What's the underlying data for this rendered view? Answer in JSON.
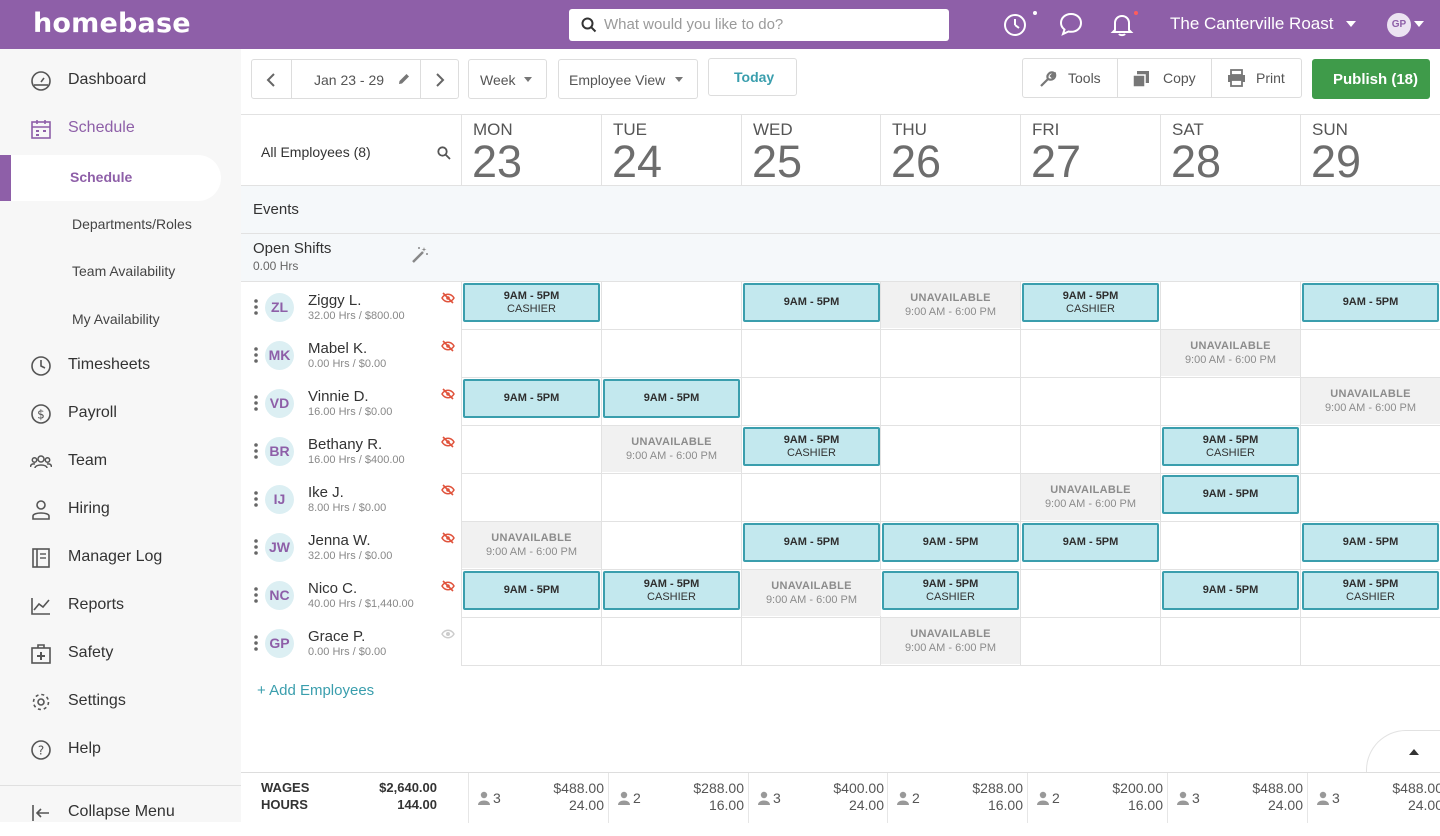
{
  "brand": {
    "name": "homebase",
    "color": "#8e5fa8"
  },
  "topbar": {
    "search_placeholder": "What would you like to do?",
    "company": "The Canterville Roast",
    "user_initials": "GP"
  },
  "sidebar": {
    "items": [
      {
        "label": "Dashboard",
        "icon": "dashboard-icon"
      },
      {
        "label": "Schedule",
        "icon": "calendar-icon"
      },
      {
        "label": "Timesheets",
        "icon": "clock-icon"
      },
      {
        "label": "Payroll",
        "icon": "dollar-icon"
      },
      {
        "label": "Team",
        "icon": "team-icon"
      },
      {
        "label": "Hiring",
        "icon": "person-icon"
      },
      {
        "label": "Manager Log",
        "icon": "log-icon"
      },
      {
        "label": "Reports",
        "icon": "chart-icon"
      },
      {
        "label": "Safety",
        "icon": "first-aid-icon"
      },
      {
        "label": "Settings",
        "icon": "gear-icon"
      },
      {
        "label": "Help",
        "icon": "help-icon"
      }
    ],
    "schedule_sub": [
      "Schedule",
      "Departments/Roles",
      "Team Availability",
      "My Availability"
    ],
    "collapse": "Collapse Menu"
  },
  "toolbar": {
    "date_range": "Jan 23 - 29",
    "range_select": "Week",
    "view_select": "Employee View",
    "today": "Today",
    "tools": "Tools",
    "copy": "Copy",
    "print": "Print",
    "publish": "Publish (18)",
    "publish_color": "#3f9b4a"
  },
  "grid": {
    "all_employees": "All Employees (8)",
    "events": "Events",
    "open_shifts": "Open Shifts",
    "open_shifts_hours": "0.00 Hrs",
    "add_employees": "+ Add Employees",
    "days": [
      {
        "dow": "MON",
        "num": "23"
      },
      {
        "dow": "TUE",
        "num": "24"
      },
      {
        "dow": "WED",
        "num": "25"
      },
      {
        "dow": "THU",
        "num": "26"
      },
      {
        "dow": "FRI",
        "num": "27"
      },
      {
        "dow": "SAT",
        "num": "28"
      },
      {
        "dow": "SUN",
        "num": "29"
      }
    ],
    "employees": [
      {
        "initials": "ZL",
        "name": "Ziggy L.",
        "sub": "32.00 Hrs / $800.00",
        "cells": [
          {
            "k": "s",
            "t": "9AM - 5PM",
            "r": "CASHIER"
          },
          null,
          {
            "k": "s",
            "t": "9AM - 5PM"
          },
          {
            "k": "u"
          },
          {
            "k": "s",
            "t": "9AM - 5PM",
            "r": "CASHIER"
          },
          null,
          {
            "k": "s",
            "t": "9AM - 5PM"
          }
        ]
      },
      {
        "initials": "MK",
        "name": "Mabel K.",
        "sub": "0.00 Hrs / $0.00",
        "cells": [
          null,
          null,
          null,
          null,
          null,
          {
            "k": "u"
          },
          null
        ]
      },
      {
        "initials": "VD",
        "name": "Vinnie D.",
        "sub": "16.00 Hrs / $0.00",
        "cells": [
          {
            "k": "s",
            "t": "9AM - 5PM"
          },
          {
            "k": "s",
            "t": "9AM - 5PM"
          },
          null,
          null,
          null,
          null,
          {
            "k": "u"
          }
        ]
      },
      {
        "initials": "BR",
        "name": "Bethany R.",
        "sub": "16.00 Hrs / $400.00",
        "cells": [
          null,
          {
            "k": "u"
          },
          {
            "k": "s",
            "t": "9AM - 5PM",
            "r": "CASHIER"
          },
          null,
          null,
          {
            "k": "s",
            "t": "9AM - 5PM",
            "r": "CASHIER"
          },
          null
        ]
      },
      {
        "initials": "IJ",
        "name": "Ike J.",
        "sub": "8.00 Hrs / $0.00",
        "cells": [
          null,
          null,
          null,
          null,
          {
            "k": "u"
          },
          {
            "k": "s",
            "t": "9AM - 5PM"
          },
          null
        ]
      },
      {
        "initials": "JW",
        "name": "Jenna W.",
        "sub": "32.00 Hrs / $0.00",
        "cells": [
          {
            "k": "u"
          },
          null,
          {
            "k": "s",
            "t": "9AM - 5PM"
          },
          {
            "k": "s",
            "t": "9AM - 5PM"
          },
          {
            "k": "s",
            "t": "9AM - 5PM"
          },
          null,
          {
            "k": "s",
            "t": "9AM - 5PM"
          }
        ]
      },
      {
        "initials": "NC",
        "name": "Nico C.",
        "sub": "40.00 Hrs / $1,440.00",
        "cells": [
          {
            "k": "s",
            "t": "9AM - 5PM"
          },
          {
            "k": "s",
            "t": "9AM - 5PM",
            "r": "CASHIER"
          },
          {
            "k": "u"
          },
          {
            "k": "s",
            "t": "9AM - 5PM",
            "r": "CASHIER"
          },
          null,
          {
            "k": "s",
            "t": "9AM - 5PM"
          },
          {
            "k": "s",
            "t": "9AM - 5PM",
            "r": "CASHIER"
          }
        ]
      },
      {
        "initials": "GP",
        "name": "Grace P.",
        "sub": "0.00 Hrs / $0.00",
        "visible": true,
        "cells": [
          null,
          null,
          null,
          {
            "k": "u"
          },
          null,
          null,
          null
        ]
      }
    ],
    "unavailable_label": "UNAVAILABLE",
    "unavailable_time": "9:00 AM - 6:00 PM"
  },
  "footer": {
    "wages_label": "WAGES",
    "hours_label": "HOURS",
    "total_wages": "$2,640.00",
    "total_hours": "144.00",
    "days": [
      {
        "count": "3",
        "wages": "$488.00",
        "hours": "24.00"
      },
      {
        "count": "2",
        "wages": "$288.00",
        "hours": "16.00"
      },
      {
        "count": "3",
        "wages": "$400.00",
        "hours": "24.00"
      },
      {
        "count": "2",
        "wages": "$288.00",
        "hours": "16.00"
      },
      {
        "count": "2",
        "wages": "$200.00",
        "hours": "16.00"
      },
      {
        "count": "3",
        "wages": "$488.00",
        "hours": "24.00"
      },
      {
        "count": "3",
        "wages": "$488.00",
        "hours": "24.00"
      }
    ]
  }
}
